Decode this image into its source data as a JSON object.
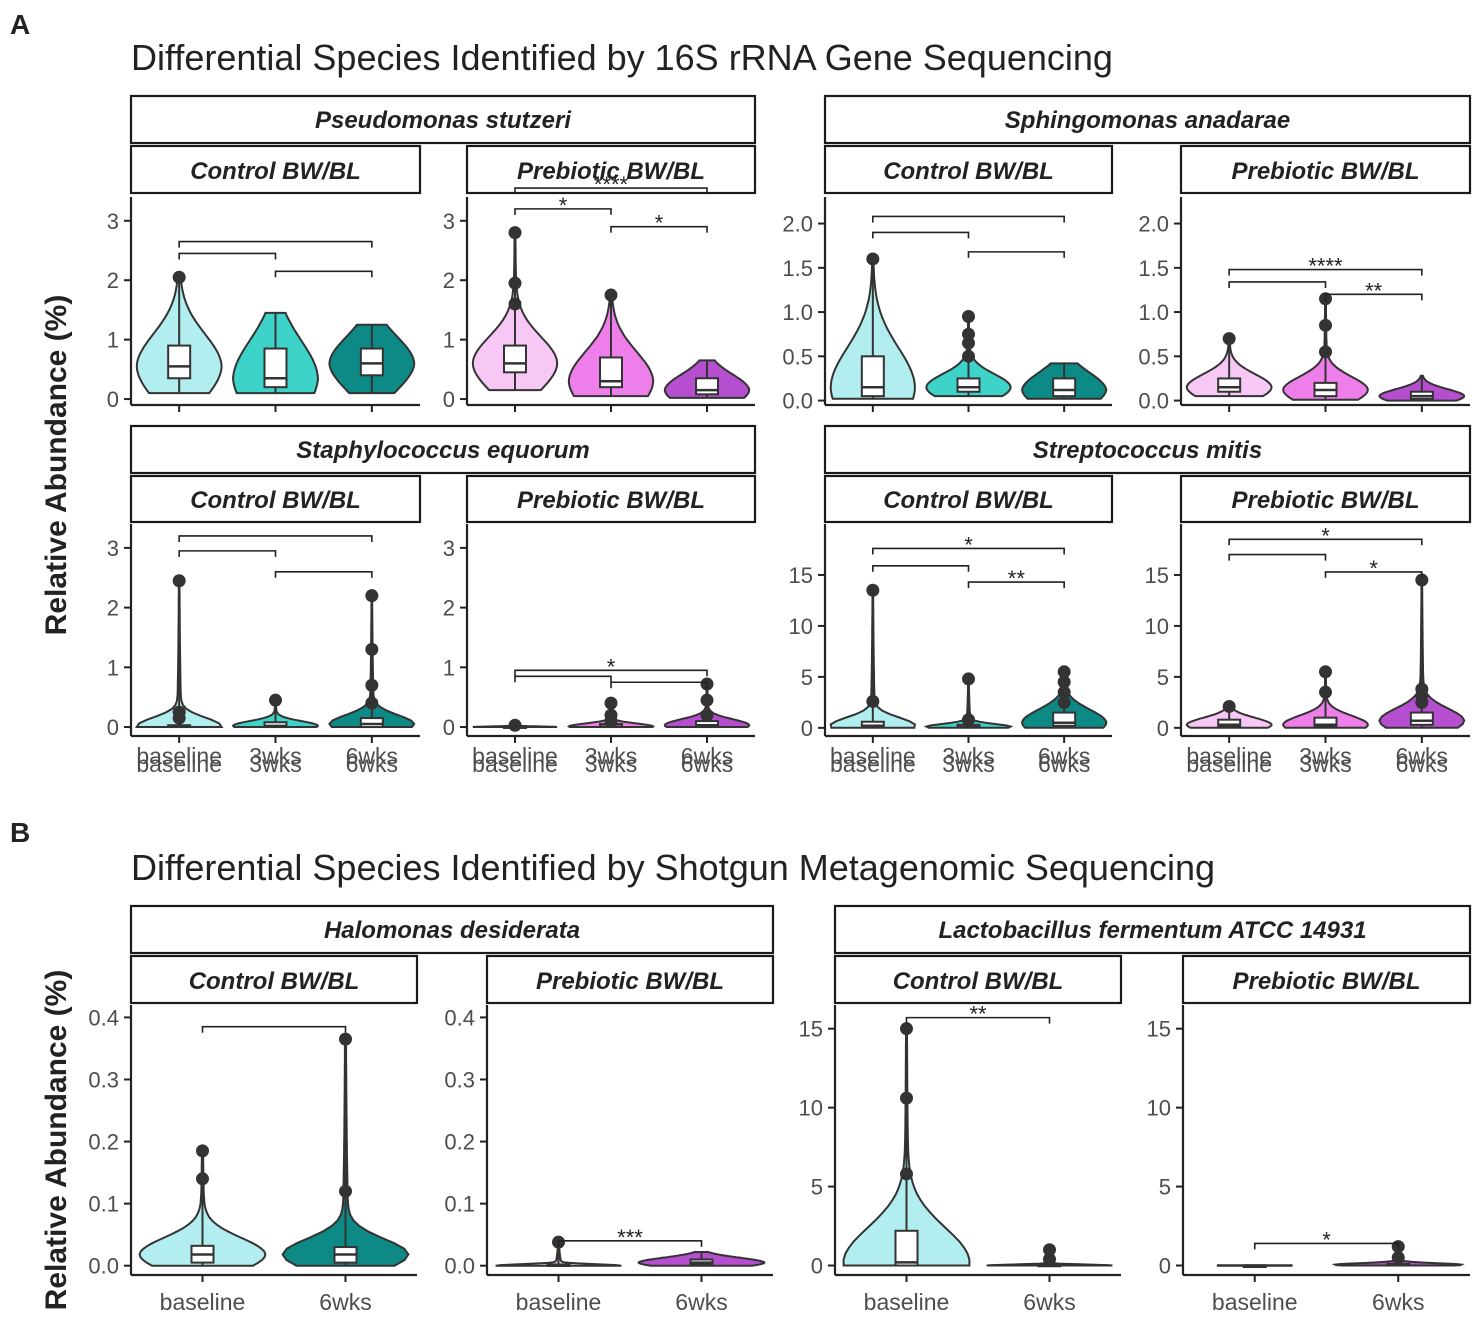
{
  "figure": {
    "panel_A_letter": "A",
    "panel_B_letter": "B",
    "section_A_title": "Differential Species Identified by 16S rRNA Gene Sequencing",
    "section_B_title": "Differential Species Identified by Shotgun Metagenomic Sequencing",
    "y_axis_label": "Relative Abundance (%)"
  },
  "colors": {
    "control_baseline": "#b2eeef",
    "control_3wks": "#3ed3c8",
    "control_6wks": "#0e8a86",
    "prebiotic_baseline": "#f7c7f5",
    "prebiotic_3wks": "#ee7eea",
    "prebiotic_6wks": "#b54fd0",
    "outline": "#333333"
  },
  "chart_data": [
    {
      "type": "violin",
      "species": "Pseudomonas stutzeri",
      "ylabel": "Relative Abundance (%)",
      "panels": [
        {
          "group": "Control BW/BL",
          "ylim": [
            -0.1,
            3.4
          ],
          "yticks": [
            0,
            1,
            2,
            3
          ],
          "categories": [
            "baseline",
            "3wks",
            "6wks"
          ],
          "series": [
            {
              "name": "baseline",
              "min": 0.1,
              "q1": 0.35,
              "median": 0.55,
              "q3": 0.9,
              "max": 2.05,
              "outliers": [
                2.05
              ]
            },
            {
              "name": "3wks",
              "min": 0.1,
              "q1": 0.2,
              "median": 0.35,
              "q3": 0.85,
              "max": 1.45,
              "outliers": []
            },
            {
              "name": "6wks",
              "min": 0.1,
              "q1": 0.4,
              "median": 0.6,
              "q3": 0.85,
              "max": 1.25,
              "outliers": []
            }
          ],
          "comparisons": [
            {
              "from": "baseline",
              "to": "6wks",
              "y": 2.65,
              "label": ""
            },
            {
              "from": "baseline",
              "to": "3wks",
              "y": 2.45,
              "label": ""
            },
            {
              "from": "3wks",
              "to": "6wks",
              "y": 2.15,
              "label": ""
            }
          ]
        },
        {
          "group": "Prebiotic BW/BL",
          "ylim": [
            -0.1,
            3.4
          ],
          "yticks": [
            0,
            1,
            2,
            3
          ],
          "categories": [
            "baseline",
            "3wks",
            "6wks"
          ],
          "series": [
            {
              "name": "baseline",
              "min": 0.15,
              "q1": 0.45,
              "median": 0.6,
              "q3": 0.9,
              "max": 2.8,
              "outliers": [
                1.6,
                1.95,
                2.8
              ]
            },
            {
              "name": "3wks",
              "min": 0.05,
              "q1": 0.2,
              "median": 0.3,
              "q3": 0.7,
              "max": 1.75,
              "outliers": [
                1.75
              ]
            },
            {
              "name": "6wks",
              "min": 0.02,
              "q1": 0.08,
              "median": 0.15,
              "q3": 0.35,
              "max": 0.65,
              "outliers": []
            }
          ],
          "comparisons": [
            {
              "from": "baseline",
              "to": "6wks",
              "y": 3.55,
              "label": "****"
            },
            {
              "from": "baseline",
              "to": "3wks",
              "y": 3.2,
              "label": "*"
            },
            {
              "from": "3wks",
              "to": "6wks",
              "y": 2.9,
              "label": "*"
            }
          ]
        }
      ]
    },
    {
      "type": "violin",
      "species": "Sphingomonas anadarae",
      "ylabel": "Relative Abundance (%)",
      "panels": [
        {
          "group": "Control BW/BL",
          "ylim": [
            -0.05,
            2.3
          ],
          "yticks": [
            0.0,
            0.5,
            1.0,
            1.5,
            2.0
          ],
          "categories": [
            "baseline",
            "3wks",
            "6wks"
          ],
          "series": [
            {
              "name": "baseline",
              "min": 0.02,
              "q1": 0.05,
              "median": 0.15,
              "q3": 0.5,
              "max": 1.6,
              "outliers": [
                1.6
              ]
            },
            {
              "name": "3wks",
              "min": 0.05,
              "q1": 0.1,
              "median": 0.15,
              "q3": 0.25,
              "max": 0.95,
              "outliers": [
                0.5,
                0.65,
                0.75,
                0.95
              ]
            },
            {
              "name": "6wks",
              "min": 0.02,
              "q1": 0.05,
              "median": 0.12,
              "q3": 0.25,
              "max": 0.42,
              "outliers": []
            }
          ],
          "comparisons": [
            {
              "from": "baseline",
              "to": "6wks",
              "y": 2.08,
              "label": ""
            },
            {
              "from": "baseline",
              "to": "3wks",
              "y": 1.9,
              "label": ""
            },
            {
              "from": "3wks",
              "to": "6wks",
              "y": 1.68,
              "label": ""
            }
          ]
        },
        {
          "group": "Prebiotic BW/BL",
          "ylim": [
            -0.05,
            2.3
          ],
          "yticks": [
            0.0,
            0.5,
            1.0,
            1.5,
            2.0
          ],
          "categories": [
            "baseline",
            "3wks",
            "6wks"
          ],
          "series": [
            {
              "name": "baseline",
              "min": 0.05,
              "q1": 0.1,
              "median": 0.15,
              "q3": 0.25,
              "max": 0.7,
              "outliers": [
                0.7
              ]
            },
            {
              "name": "3wks",
              "min": 0.01,
              "q1": 0.05,
              "median": 0.12,
              "q3": 0.2,
              "max": 1.15,
              "outliers": [
                0.55,
                0.85,
                1.15
              ]
            },
            {
              "name": "6wks",
              "min": 0.0,
              "q1": 0.02,
              "median": 0.05,
              "q3": 0.1,
              "max": 0.28,
              "outliers": []
            }
          ],
          "comparisons": [
            {
              "from": "baseline",
              "to": "6wks",
              "y": 1.48,
              "label": "****"
            },
            {
              "from": "baseline",
              "to": "3wks",
              "y": 1.34,
              "label": ""
            },
            {
              "from": "3wks",
              "to": "6wks",
              "y": 1.2,
              "label": "**"
            }
          ]
        }
      ]
    },
    {
      "type": "violin",
      "species": "Staphylococcus equorum",
      "ylabel": "Relative Abundance (%)",
      "panels": [
        {
          "group": "Control BW/BL",
          "ylim": [
            -0.15,
            3.4
          ],
          "yticks": [
            0,
            1,
            2,
            3
          ],
          "categories": [
            "baseline",
            "3wks",
            "6wks"
          ],
          "series": [
            {
              "name": "baseline",
              "min": 0.0,
              "q1": 0.0,
              "median": 0.01,
              "q3": 0.03,
              "max": 2.45,
              "outliers": [
                0.15,
                0.25,
                2.45
              ]
            },
            {
              "name": "3wks",
              "min": 0.0,
              "q1": 0.0,
              "median": 0.02,
              "q3": 0.08,
              "max": 0.45,
              "outliers": [
                0.45
              ]
            },
            {
              "name": "6wks",
              "min": 0.0,
              "q1": 0.0,
              "median": 0.05,
              "q3": 0.15,
              "max": 2.2,
              "outliers": [
                0.4,
                0.7,
                1.3,
                2.2
              ]
            }
          ],
          "comparisons": [
            {
              "from": "baseline",
              "to": "6wks",
              "y": 3.2,
              "label": ""
            },
            {
              "from": "baseline",
              "to": "3wks",
              "y": 2.95,
              "label": ""
            },
            {
              "from": "3wks",
              "to": "6wks",
              "y": 2.6,
              "label": ""
            }
          ]
        },
        {
          "group": "Prebiotic BW/BL",
          "ylim": [
            -0.15,
            3.4
          ],
          "yticks": [
            0,
            1,
            2,
            3
          ],
          "categories": [
            "baseline",
            "3wks",
            "6wks"
          ],
          "series": [
            {
              "name": "baseline",
              "min": 0.0,
              "q1": 0.0,
              "median": 0.0,
              "q3": 0.01,
              "max": 0.03,
              "outliers": [
                0.03
              ]
            },
            {
              "name": "3wks",
              "min": 0.0,
              "q1": 0.0,
              "median": 0.01,
              "q3": 0.05,
              "max": 0.4,
              "outliers": [
                0.1,
                0.2,
                0.4
              ]
            },
            {
              "name": "6wks",
              "min": 0.0,
              "q1": 0.0,
              "median": 0.03,
              "q3": 0.1,
              "max": 0.72,
              "outliers": [
                0.2,
                0.45,
                0.72
              ]
            }
          ],
          "comparisons": [
            {
              "from": "baseline",
              "to": "6wks",
              "y": 0.95,
              "label": "*"
            },
            {
              "from": "baseline",
              "to": "3wks",
              "y": 0.85,
              "label": ""
            },
            {
              "from": "3wks",
              "to": "6wks",
              "y": 0.75,
              "label": ""
            }
          ]
        }
      ]
    },
    {
      "type": "violin",
      "species": "Streptococcus mitis",
      "ylabel": "Relative Abundance (%)",
      "panels": [
        {
          "group": "Control BW/BL",
          "ylim": [
            -0.8,
            20
          ],
          "yticks": [
            0,
            5,
            10,
            15
          ],
          "categories": [
            "baseline",
            "3wks",
            "6wks"
          ],
          "series": [
            {
              "name": "baseline",
              "min": 0.0,
              "q1": 0.05,
              "median": 0.2,
              "q3": 0.6,
              "max": 13.5,
              "outliers": [
                2.6,
                13.5
              ]
            },
            {
              "name": "3wks",
              "min": 0.0,
              "q1": 0.05,
              "median": 0.1,
              "q3": 0.3,
              "max": 4.8,
              "outliers": [
                0.8,
                4.8
              ]
            },
            {
              "name": "6wks",
              "min": 0.0,
              "q1": 0.2,
              "median": 0.5,
              "q3": 1.5,
              "max": 5.5,
              "outliers": [
                2.5,
                3.5,
                4.5,
                5.5
              ]
            }
          ],
          "comparisons": [
            {
              "from": "baseline",
              "to": "6wks",
              "y": 17.6,
              "label": "*"
            },
            {
              "from": "baseline",
              "to": "3wks",
              "y": 15.9,
              "label": ""
            },
            {
              "from": "3wks",
              "to": "6wks",
              "y": 14.3,
              "label": "**"
            }
          ]
        },
        {
          "group": "Prebiotic BW/BL",
          "ylim": [
            -0.8,
            20
          ],
          "yticks": [
            0,
            5,
            10,
            15
          ],
          "categories": [
            "baseline",
            "3wks",
            "6wks"
          ],
          "series": [
            {
              "name": "baseline",
              "min": 0.0,
              "q1": 0.1,
              "median": 0.3,
              "q3": 0.8,
              "max": 2.1,
              "outliers": [
                2.1
              ]
            },
            {
              "name": "3wks",
              "min": 0.0,
              "q1": 0.1,
              "median": 0.3,
              "q3": 1.0,
              "max": 5.5,
              "outliers": [
                3.5,
                5.5
              ]
            },
            {
              "name": "6wks",
              "min": 0.0,
              "q1": 0.3,
              "median": 0.7,
              "q3": 1.5,
              "max": 14.5,
              "outliers": [
                2.5,
                3.2,
                3.8,
                14.5
              ]
            }
          ],
          "comparisons": [
            {
              "from": "baseline",
              "to": "6wks",
              "y": 18.5,
              "label": "*"
            },
            {
              "from": "baseline",
              "to": "3wks",
              "y": 17.0,
              "label": ""
            },
            {
              "from": "3wks",
              "to": "6wks",
              "y": 15.3,
              "label": "*"
            }
          ]
        }
      ]
    },
    {
      "type": "violin",
      "species": "Halomonas desiderata",
      "ylabel": "Relative Abundance (%)",
      "panels": [
        {
          "group": "Control BW/BL",
          "ylim": [
            -0.015,
            0.42
          ],
          "yticks": [
            0.0,
            0.1,
            0.2,
            0.3,
            0.4
          ],
          "categories": [
            "baseline",
            "6wks"
          ],
          "series": [
            {
              "name": "baseline",
              "min": 0.0,
              "q1": 0.005,
              "median": 0.018,
              "q3": 0.032,
              "max": 0.185,
              "outliers": [
                0.14,
                0.185
              ]
            },
            {
              "name": "6wks",
              "min": 0.0,
              "q1": 0.005,
              "median": 0.018,
              "q3": 0.03,
              "max": 0.365,
              "outliers": [
                0.12,
                0.365
              ]
            }
          ],
          "comparisons": [
            {
              "from": "baseline",
              "to": "6wks",
              "y": 0.385,
              "label": ""
            }
          ]
        },
        {
          "group": "Prebiotic BW/BL",
          "ylim": [
            -0.015,
            0.42
          ],
          "yticks": [
            0.0,
            0.1,
            0.2,
            0.3,
            0.4
          ],
          "categories": [
            "baseline",
            "6wks"
          ],
          "series": [
            {
              "name": "baseline",
              "min": 0.0,
              "q1": 0.0,
              "median": 0.0,
              "q3": 0.002,
              "max": 0.038,
              "outliers": [
                0.038
              ]
            },
            {
              "name": "6wks",
              "min": 0.0,
              "q1": 0.002,
              "median": 0.005,
              "q3": 0.01,
              "max": 0.022,
              "outliers": []
            }
          ],
          "comparisons": [
            {
              "from": "baseline",
              "to": "6wks",
              "y": 0.04,
              "label": "***"
            }
          ]
        }
      ]
    },
    {
      "type": "violin",
      "species": "Lactobacillus fermentum ATCC 14931",
      "ylabel": "Relative Abundance (%)",
      "panels": [
        {
          "group": "Control BW/BL",
          "ylim": [
            -0.6,
            16.5
          ],
          "yticks": [
            0,
            5,
            10,
            15
          ],
          "categories": [
            "baseline",
            "6wks"
          ],
          "series": [
            {
              "name": "baseline",
              "min": 0.0,
              "q1": 0.0,
              "median": 0.2,
              "q3": 2.2,
              "max": 15.0,
              "outliers": [
                5.8,
                10.6,
                15.0
              ]
            },
            {
              "name": "6wks",
              "min": 0.0,
              "q1": 0.0,
              "median": 0.0,
              "q3": 0.05,
              "max": 1.0,
              "outliers": [
                0.4,
                1.0
              ]
            }
          ],
          "comparisons": [
            {
              "from": "baseline",
              "to": "6wks",
              "y": 15.7,
              "label": "**"
            }
          ]
        },
        {
          "group": "Prebiotic BW/BL",
          "ylim": [
            -0.6,
            16.5
          ],
          "yticks": [
            0,
            5,
            10,
            15
          ],
          "categories": [
            "baseline",
            "6wks"
          ],
          "series": [
            {
              "name": "baseline",
              "min": 0.0,
              "q1": 0.0,
              "median": 0.0,
              "q3": 0.0,
              "max": 0.0,
              "outliers": []
            },
            {
              "name": "6wks",
              "min": 0.0,
              "q1": 0.0,
              "median": 0.05,
              "q3": 0.1,
              "max": 1.2,
              "outliers": [
                0.5,
                1.2
              ]
            }
          ],
          "comparisons": [
            {
              "from": "baseline",
              "to": "6wks",
              "y": 1.4,
              "label": "*"
            }
          ]
        }
      ]
    }
  ]
}
